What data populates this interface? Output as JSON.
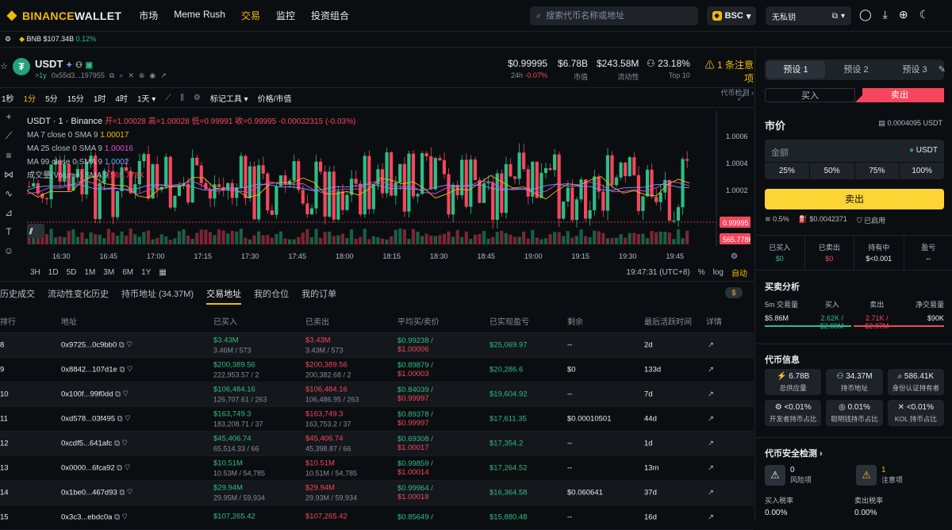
{
  "header": {
    "brand_1": "BINANCE",
    "brand_2": " WALLET",
    "nav": [
      "市场",
      "Meme Rush",
      "交易",
      "监控",
      "投资组合"
    ],
    "search_placeholder": "搜索代币名称或地址",
    "chain": "BSC",
    "wallet": "无私钥"
  },
  "ticker": {
    "symbol": "BNB",
    "price": "$107.34B",
    "change": "0.12%"
  },
  "token": {
    "name": "USDT",
    "age": ">1y",
    "address": "0x55d3...197955"
  },
  "stats": [
    {
      "value": "$0.99995",
      "label_a": "24h",
      "label_b": "-0.07%"
    },
    {
      "value": "$6.78B",
      "label": "市值"
    },
    {
      "value": "$243.58M",
      "label": "流动性"
    },
    {
      "value": "23.18%",
      "label": "Top 10"
    },
    {
      "value": "1 条注意项",
      "label": "代币检测"
    }
  ],
  "timeframes": [
    "1秒",
    "1分",
    "5分",
    "15分",
    "1时",
    "4时",
    "1天"
  ],
  "chart_tools": [
    "标记工具",
    "价格/市值"
  ],
  "legend": {
    "title": "USDT · 1 · Binance",
    "ohlc": "开=1.00028 高=1.00028 低=0.99991 收=0.99995 -0.00032315 (-0.03%)",
    "ma7": "MA 7 close 0 SMA 9",
    "ma7v": "1.00017",
    "ma25": "MA 25 close 0 SMA 9",
    "ma25v": "1.00016",
    "ma99": "MA 99 close 0 SMA 9",
    "ma99v": "1.0002",
    "vol": "成交量(Volume) SMA 9",
    "volv": "565.778K"
  },
  "chart_data": {
    "type": "candlestick",
    "x_ticks": [
      "16:30",
      "16:45",
      "17:00",
      "17:15",
      "17:30",
      "17:45",
      "18:00",
      "18:15",
      "18:30",
      "18:45",
      "19:00",
      "19:15",
      "19:30",
      "19:45"
    ],
    "y_ticks": [
      "1.0006",
      "1.0004",
      "1.0002"
    ],
    "last_price": "0.99995",
    "last_volume": "565.778K"
  },
  "range": [
    "3H",
    "1D",
    "5D",
    "1M",
    "3M",
    "6M",
    "1Y"
  ],
  "clock": "19:47:31 (UTC+8)",
  "scale": [
    "%",
    "log",
    "自动"
  ],
  "tabs": [
    "历史成交",
    "流动性变化历史",
    "持币地址 (34.37M)",
    "交易地址",
    "我的仓位",
    "我的订单"
  ],
  "table": {
    "headers": [
      "排行",
      "地址",
      "已买入",
      "已卖出",
      "平均买/卖价",
      "已实现盈亏",
      "剩余",
      "最后活跃时间",
      "详情"
    ],
    "rows": [
      {
        "rank": "8",
        "addr": "0x9725...0c9bb0",
        "buy": "$3.43M",
        "buy_s": "3.46M / 573",
        "sell": "$3.43M",
        "sell_s": "3.43M / 573",
        "avg1": "$0.99238 /",
        "avg2": "$1.00006",
        "pnl": "$25,069.97",
        "rem": "--",
        "last": "2d"
      },
      {
        "rank": "9",
        "addr": "0x8842...107d1e",
        "buy": "$200,389.56",
        "buy_s": "222,953.57 / 2",
        "sell": "$200,389.56",
        "sell_s": "200,382.68 / 2",
        "avg1": "$0.89879 /",
        "avg2": "$1.00003",
        "pnl": "$20,286.6",
        "rem": "$0",
        "last": "133d"
      },
      {
        "rank": "10",
        "addr": "0x100f...99f0dd",
        "buy": "$106,484.16",
        "buy_s": "126,707.61 / 263",
        "sell": "$106,484.16",
        "sell_s": "106,486.95 / 263",
        "avg1": "$0.84039 /",
        "avg2": "$0.99997",
        "pnl": "$19,604.92",
        "rem": "--",
        "last": "7d"
      },
      {
        "rank": "11",
        "addr": "0xd578...03f495",
        "buy": "$163,749.3",
        "buy_s": "183,208.71 / 37",
        "sell": "$163,749.3",
        "sell_s": "163,753.2 / 37",
        "avg1": "$0.89378 /",
        "avg2": "$0.99997",
        "pnl": "$17,611.35",
        "rem": "$0.00010501",
        "last": "44d"
      },
      {
        "rank": "12",
        "addr": "0xcdf5...641afc",
        "buy": "$45,406.74",
        "buy_s": "65,514.33 / 66",
        "sell": "$45,406.74",
        "sell_s": "45,398.87 / 66",
        "avg1": "$0.69308 /",
        "avg2": "$1.00017",
        "pnl": "$17,354.2",
        "rem": "--",
        "last": "1d"
      },
      {
        "rank": "13",
        "addr": "0x0000...6fca92",
        "buy": "$10.51M",
        "buy_s": "10.53M / 54,785",
        "sell": "$10.51M",
        "sell_s": "10.51M / 54,785",
        "avg1": "$0.99859 /",
        "avg2": "$1.00014",
        "pnl": "$17,264.52",
        "rem": "--",
        "last": "13m"
      },
      {
        "rank": "14",
        "addr": "0x1be0...467d93",
        "buy": "$29.94M",
        "buy_s": "29.95M / 59,934",
        "sell": "$29.94M",
        "sell_s": "29.93M / 59,934",
        "avg1": "$0.99964 /",
        "avg2": "$1.00018",
        "pnl": "$16,364.58",
        "rem": "$0.060641",
        "last": "37d"
      },
      {
        "rank": "15",
        "addr": "0x3c3...ebdc0a",
        "buy": "$107,265.42",
        "buy_s": "",
        "sell": "$107,265.42",
        "sell_s": "",
        "avg1": "$0.85649 /",
        "avg2": "",
        "pnl": "$15,880.48",
        "rem": "--",
        "last": "16d"
      }
    ]
  },
  "trade": {
    "presets": [
      "预设 1",
      "预设 2",
      "预设 3"
    ],
    "buy": "买入",
    "sell": "卖出",
    "market": "市价",
    "balance": "0.0004095 USDT",
    "amount_label": "金额",
    "amount_cur": "USDT",
    "pcts": [
      "25%",
      "50%",
      "75%",
      "100%"
    ],
    "submit": "卖出",
    "opt_slip": "0.5%",
    "opt_fee": "$0.0042371",
    "opt_on": "已启用",
    "holdings": [
      {
        "l": "已买入",
        "v": "$0"
      },
      {
        "l": "已卖出",
        "v": "$0"
      },
      {
        "l": "持有中",
        "v": "$<0.001"
      },
      {
        "l": "盈亏",
        "v": "--"
      }
    ]
  },
  "analysis": {
    "title": "买卖分析",
    "cols": [
      {
        "l": "5m 交易量",
        "v": "$5.86M"
      },
      {
        "l": "买入",
        "v": "2.62K / $2.88M"
      },
      {
        "l": "卖出",
        "v": "2.71K / $2.97M"
      },
      {
        "l": "净交易量",
        "v": "$90K"
      }
    ]
  },
  "info": {
    "title": "代币信息",
    "cells": [
      {
        "n": "6.78B",
        "l": "总供应量"
      },
      {
        "n": "34.37M",
        "l": "持币地址"
      },
      {
        "n": "586.41K",
        "l": "身份认证持有者"
      },
      {
        "n": "<0.01%",
        "l": "开发者持币占比"
      },
      {
        "n": "0.01%",
        "l": "聪明钱持币占比"
      },
      {
        "n": "<0.01%",
        "l": "KOL 持币占比"
      }
    ]
  },
  "security": {
    "title": "代币安全检测",
    "risk_n": "0",
    "risk_l": "风险项",
    "warn_n": "1",
    "warn_l": "注意项",
    "buy_tax_l": "买入税率",
    "buy_tax": "0.00%",
    "sell_tax_l": "卖出税率",
    "sell_tax": "0.00%"
  }
}
